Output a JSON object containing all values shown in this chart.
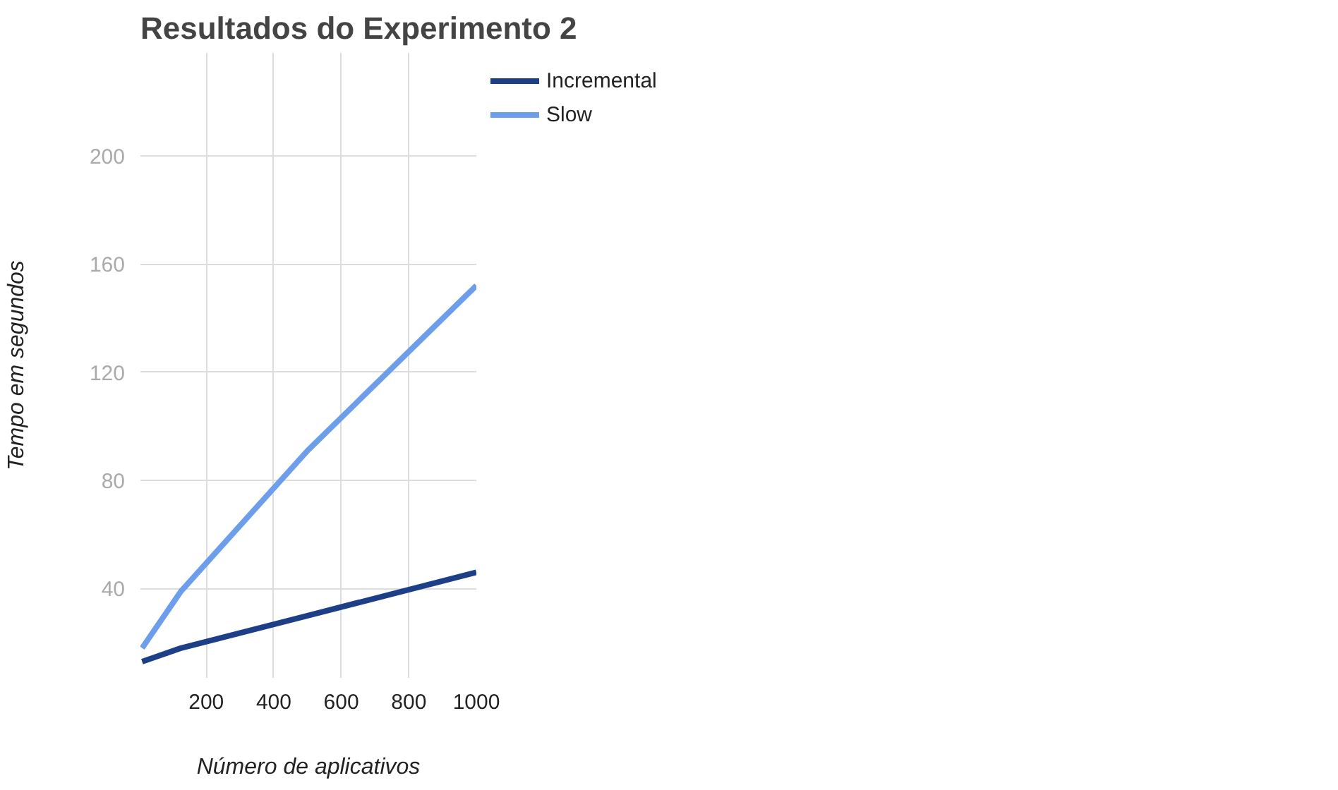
{
  "chart_data": {
    "type": "line",
    "title": "Resultados do Experimento 2",
    "xlabel": "Número de aplicativos",
    "ylabel": "Tempo em segundos",
    "x": [
      10,
      125,
      500,
      1000
    ],
    "series": [
      {
        "name": "Incremental",
        "color": "#1c3f87",
        "values": [
          13,
          18,
          30,
          46
        ]
      },
      {
        "name": "Slow",
        "color": "#6d9eeb",
        "values": [
          18,
          39,
          91,
          152
        ]
      }
    ],
    "xlim": [
      5,
      1000
    ],
    "ylim": [
      7,
      238
    ],
    "xticks": [
      200,
      400,
      600,
      800,
      1000
    ],
    "yticks": [
      40,
      80,
      120,
      160,
      200
    ],
    "grid": true,
    "legend": "top right",
    "marker": "none",
    "line_style": "solid"
  }
}
